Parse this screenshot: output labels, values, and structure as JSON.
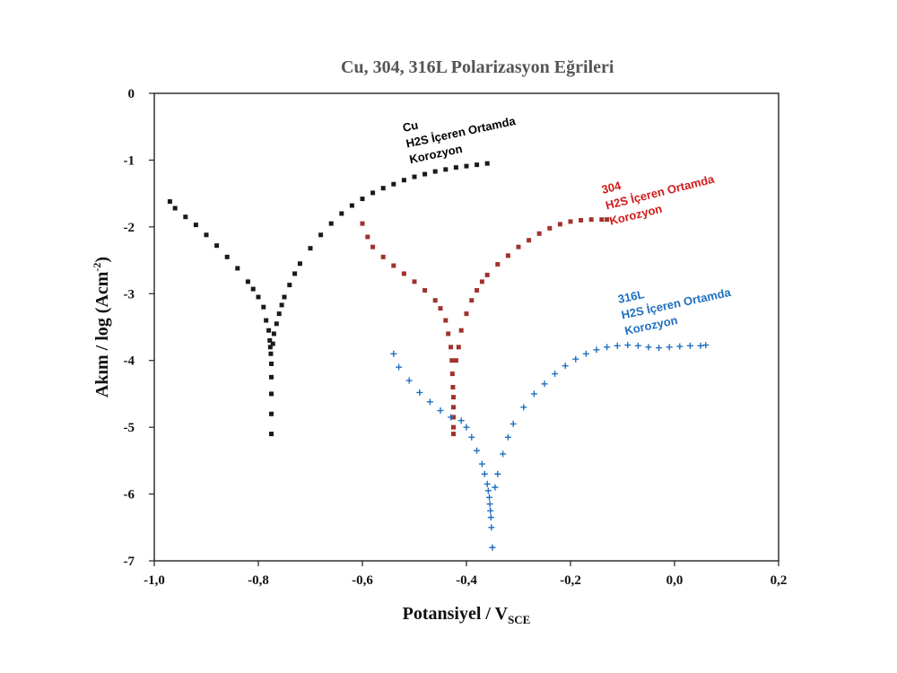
{
  "chart_data": {
    "type": "scatter",
    "title": "Cu, 304, 316L Polarizasyon Eğrileri",
    "xlabel": "Potansiyel / V",
    "xlabel_sub": "SCE",
    "ylabel": "Akım / log (Acm",
    "ylabel_sup": "-2",
    "ylabel_end": ")",
    "xlim": [
      -1.0,
      0.2
    ],
    "ylim": [
      -7,
      0
    ],
    "x_ticks": [
      -1.0,
      -0.8,
      -0.6,
      -0.4,
      -0.2,
      0.0,
      0.2
    ],
    "x_tick_labels": [
      "-1,0",
      "-0,8",
      "-0,6",
      "-0,4",
      "-0,2",
      "0,0",
      "0,2"
    ],
    "y_ticks": [
      0,
      -1,
      -2,
      -3,
      -4,
      -5,
      -6,
      -7
    ],
    "y_tick_labels": [
      "0",
      "-1",
      "-2",
      "-3",
      "-4",
      "-5",
      "-6",
      "-7"
    ],
    "grid": false,
    "legend": "none",
    "series": [
      {
        "color": "#1a1a1a",
        "marker": "square",
        "x": [
          -0.97,
          -0.96,
          -0.94,
          -0.92,
          -0.9,
          -0.88,
          -0.86,
          -0.84,
          -0.82,
          -0.81,
          -0.8,
          -0.79,
          -0.785,
          -0.78,
          -0.778,
          -0.777,
          -0.776,
          -0.775,
          -0.775,
          -0.775,
          -0.775,
          -0.775,
          -0.772,
          -0.77,
          -0.765,
          -0.76,
          -0.755,
          -0.75,
          -0.74,
          -0.73,
          -0.72,
          -0.7,
          -0.68,
          -0.66,
          -0.64,
          -0.62,
          -0.6,
          -0.58,
          -0.56,
          -0.54,
          -0.52,
          -0.5,
          -0.48,
          -0.46,
          -0.44,
          -0.42,
          -0.4,
          -0.38,
          -0.36
        ],
        "y": [
          -1.62,
          -1.72,
          -1.85,
          -1.97,
          -2.12,
          -2.28,
          -2.45,
          -2.62,
          -2.82,
          -2.93,
          -3.05,
          -3.2,
          -3.4,
          -3.55,
          -3.7,
          -3.8,
          -3.9,
          -4.05,
          -4.25,
          -4.5,
          -4.8,
          -5.1,
          -3.75,
          -3.6,
          -3.45,
          -3.3,
          -3.17,
          -3.05,
          -2.87,
          -2.7,
          -2.55,
          -2.32,
          -2.12,
          -1.95,
          -1.8,
          -1.68,
          -1.58,
          -1.49,
          -1.42,
          -1.36,
          -1.3,
          -1.25,
          -1.21,
          -1.17,
          -1.14,
          -1.11,
          -1.09,
          -1.07,
          -1.05
        ]
      },
      {
        "color": "#a0322d",
        "marker": "square",
        "x": [
          -0.6,
          -0.59,
          -0.58,
          -0.56,
          -0.54,
          -0.52,
          -0.5,
          -0.48,
          -0.46,
          -0.45,
          -0.44,
          -0.435,
          -0.43,
          -0.428,
          -0.427,
          -0.426,
          -0.425,
          -0.425,
          -0.425,
          -0.425,
          -0.425,
          -0.42,
          -0.415,
          -0.41,
          -0.4,
          -0.39,
          -0.38,
          -0.37,
          -0.36,
          -0.34,
          -0.32,
          -0.3,
          -0.28,
          -0.26,
          -0.24,
          -0.22,
          -0.2,
          -0.18,
          -0.16,
          -0.14,
          -0.13
        ],
        "y": [
          -1.95,
          -2.15,
          -2.3,
          -2.45,
          -2.58,
          -2.7,
          -2.82,
          -2.95,
          -3.1,
          -3.22,
          -3.4,
          -3.6,
          -3.8,
          -4.0,
          -4.2,
          -4.4,
          -4.55,
          -4.7,
          -4.85,
          -5.0,
          -5.1,
          -4.0,
          -3.8,
          -3.55,
          -3.3,
          -3.1,
          -2.95,
          -2.82,
          -2.72,
          -2.56,
          -2.43,
          -2.3,
          -2.2,
          -2.1,
          -2.02,
          -1.96,
          -1.92,
          -1.9,
          -1.89,
          -1.89,
          -1.89
        ]
      },
      {
        "color": "#1f6fbf",
        "marker": "plus",
        "x": [
          -0.54,
          -0.53,
          -0.51,
          -0.49,
          -0.47,
          -0.45,
          -0.43,
          -0.41,
          -0.4,
          -0.39,
          -0.38,
          -0.37,
          -0.365,
          -0.36,
          -0.358,
          -0.356,
          -0.355,
          -0.354,
          -0.353,
          -0.352,
          -0.35,
          -0.345,
          -0.34,
          -0.33,
          -0.32,
          -0.31,
          -0.29,
          -0.27,
          -0.25,
          -0.23,
          -0.21,
          -0.19,
          -0.17,
          -0.15,
          -0.13,
          -0.11,
          -0.09,
          -0.07,
          -0.05,
          -0.03,
          -0.01,
          0.01,
          0.03,
          0.05,
          0.06
        ],
        "y": [
          -3.9,
          -4.1,
          -4.3,
          -4.48,
          -4.62,
          -4.75,
          -4.85,
          -4.9,
          -5.0,
          -5.15,
          -5.35,
          -5.55,
          -5.7,
          -5.85,
          -5.95,
          -6.05,
          -6.15,
          -6.25,
          -6.35,
          -6.5,
          -6.8,
          -5.9,
          -5.7,
          -5.4,
          -5.15,
          -4.95,
          -4.7,
          -4.5,
          -4.35,
          -4.2,
          -4.08,
          -3.98,
          -3.9,
          -3.84,
          -3.8,
          -3.78,
          -3.77,
          -3.78,
          -3.8,
          -3.81,
          -3.8,
          -3.79,
          -3.78,
          -3.78,
          -3.77
        ]
      }
    ],
    "annotations": [
      {
        "lines": [
          "Cu",
          "H2S İçeren Ortamda",
          "Korozyon"
        ],
        "color": "#000000"
      },
      {
        "lines": [
          "304",
          "H2S İçeren Ortamda",
          "Korozyon"
        ],
        "color": "#d11a1a"
      },
      {
        "lines": [
          "316L",
          "H2S İçeren Ortamda",
          "Korozyon"
        ],
        "color": "#1f6fbf"
      }
    ]
  }
}
